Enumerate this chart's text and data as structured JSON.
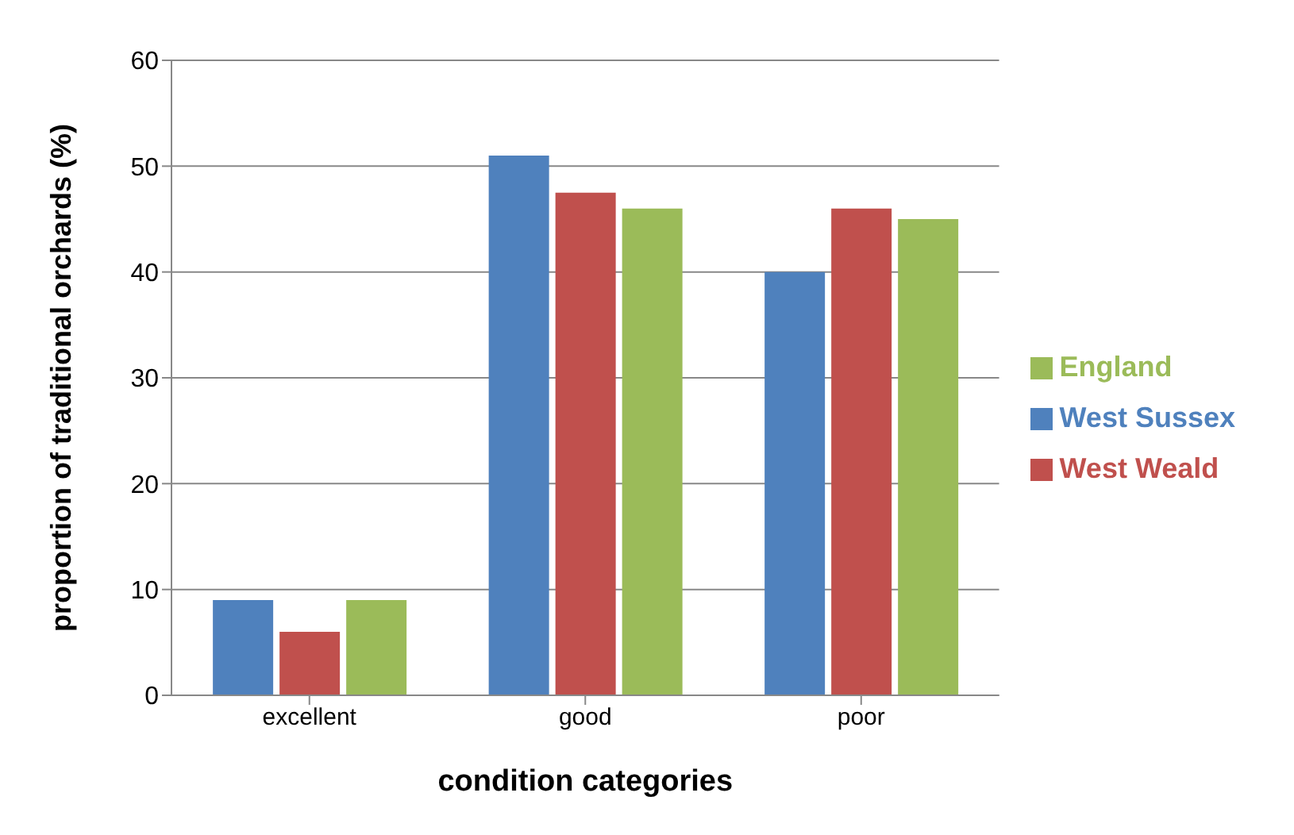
{
  "chart_data": {
    "type": "bar",
    "xlabel": "condition categories",
    "ylabel": "proportion  of traditional orchards (%)",
    "categories": [
      "excellent",
      "good",
      "poor"
    ],
    "series": [
      {
        "name": "West Sussex",
        "color": "#4f81bd",
        "values": [
          9,
          51,
          40
        ]
      },
      {
        "name": "West Weald",
        "color": "#c0504d",
        "values": [
          6,
          47.5,
          46
        ]
      },
      {
        "name": "England",
        "color": "#9bbb59",
        "values": [
          9,
          46,
          45
        ]
      }
    ],
    "ylim": [
      0,
      60
    ],
    "yticks": [
      0,
      10,
      20,
      30,
      40,
      50,
      60
    ],
    "grid": "y",
    "legend": "right"
  }
}
